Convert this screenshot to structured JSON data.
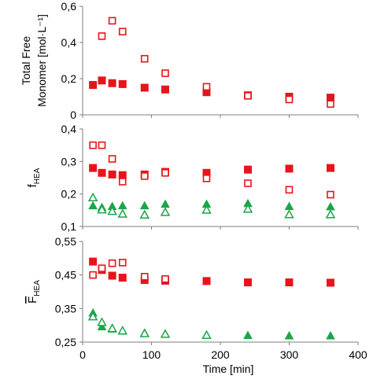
{
  "colors": {
    "red": "#e8141b",
    "green": "#1aa64a",
    "axis": "#7f7f7f"
  },
  "chart_data": [
    {
      "type": "scatter",
      "ylabel_lines": [
        "Total Free",
        "Monomer [mol·L⁻¹]"
      ],
      "ylim": [
        0,
        0.6
      ],
      "yticks": [
        "0",
        "0,2",
        "0,4",
        "0,6"
      ],
      "ytick_values": [
        0,
        0.2,
        0.4,
        0.6
      ],
      "xlim": [
        0,
        400
      ],
      "series": [
        {
          "color": "red",
          "marker": "square-filled",
          "x": [
            15,
            28,
            43,
            58,
            90,
            120,
            180,
            240,
            300,
            360
          ],
          "y": [
            0.165,
            0.19,
            0.175,
            0.17,
            0.15,
            0.14,
            0.125,
            0.108,
            0.1,
            0.095
          ]
        },
        {
          "color": "red",
          "marker": "square-open",
          "x": [
            28,
            43,
            58,
            90,
            120,
            180,
            240,
            300,
            360
          ],
          "y": [
            0.435,
            0.52,
            0.46,
            0.31,
            0.23,
            0.155,
            0.105,
            0.085,
            0.06
          ]
        }
      ]
    },
    {
      "type": "scatter",
      "ylabel": "f",
      "ylabel_sub": "HEA",
      "ylim": [
        0.1,
        0.4
      ],
      "yticks": [
        "0,1",
        "0,2",
        "0,3",
        "0,4"
      ],
      "ytick_values": [
        0.1,
        0.2,
        0.3,
        0.4
      ],
      "xlim": [
        0,
        400
      ],
      "series": [
        {
          "color": "red",
          "marker": "square-filled",
          "x": [
            15,
            28,
            43,
            58,
            90,
            120,
            180,
            240,
            300,
            360
          ],
          "y": [
            0.28,
            0.265,
            0.26,
            0.258,
            0.26,
            0.268,
            0.265,
            0.275,
            0.278,
            0.28
          ]
        },
        {
          "color": "red",
          "marker": "square-open",
          "x": [
            15,
            28,
            43,
            58,
            90,
            120,
            180,
            240,
            300,
            360
          ],
          "y": [
            0.35,
            0.35,
            0.308,
            0.238,
            0.255,
            0.265,
            0.248,
            0.233,
            0.213,
            0.198
          ]
        },
        {
          "color": "green",
          "marker": "triangle-filled",
          "x": [
            15,
            28,
            43,
            58,
            90,
            120,
            180,
            240,
            300,
            360
          ],
          "y": [
            0.165,
            0.16,
            0.163,
            0.165,
            0.165,
            0.17,
            0.17,
            0.172,
            0.163,
            0.162
          ]
        },
        {
          "color": "green",
          "marker": "triangle-open",
          "x": [
            15,
            28,
            43,
            58,
            90,
            120,
            180,
            240,
            300,
            360
          ],
          "y": [
            0.19,
            0.153,
            0.148,
            0.14,
            0.137,
            0.145,
            0.152,
            0.155,
            0.138,
            0.138
          ]
        }
      ]
    },
    {
      "type": "scatter",
      "ylabel": "F",
      "ylabel_sub": "HEA",
      "ylim": [
        0.25,
        0.55
      ],
      "yticks": [
        "0,25",
        "0,35",
        "0,45",
        "0,55"
      ],
      "ytick_values": [
        0.25,
        0.35,
        0.45,
        0.55
      ],
      "xlim": [
        0,
        400
      ],
      "xticks": [
        "0",
        "100",
        "200",
        "300",
        "400"
      ],
      "xtick_values": [
        0,
        100,
        200,
        300,
        400
      ],
      "xlabel": "Time [min]",
      "series": [
        {
          "color": "red",
          "marker": "square-filled",
          "x": [
            15,
            28,
            43,
            58,
            90,
            120,
            180,
            240,
            300,
            360
          ],
          "y": [
            0.49,
            0.465,
            0.448,
            0.442,
            0.435,
            0.433,
            0.432,
            0.428,
            0.428,
            0.427
          ]
        },
        {
          "color": "red",
          "marker": "square-open",
          "x": [
            15,
            28,
            43,
            58,
            90,
            120
          ],
          "y": [
            0.45,
            0.47,
            0.485,
            0.487,
            0.445,
            0.438
          ]
        },
        {
          "color": "green",
          "marker": "triangle-filled",
          "x": [
            15,
            28,
            43,
            58,
            90,
            120,
            180,
            240,
            300,
            360
          ],
          "y": [
            0.338,
            0.297,
            0.29,
            0.284,
            0.278,
            0.275,
            0.272,
            0.271,
            0.27,
            0.27
          ]
        },
        {
          "color": "green",
          "marker": "triangle-open",
          "x": [
            15,
            28,
            43,
            58,
            90,
            120,
            180
          ],
          "y": [
            0.327,
            0.31,
            0.292,
            0.285,
            0.277,
            0.275,
            0.272
          ]
        }
      ]
    }
  ]
}
